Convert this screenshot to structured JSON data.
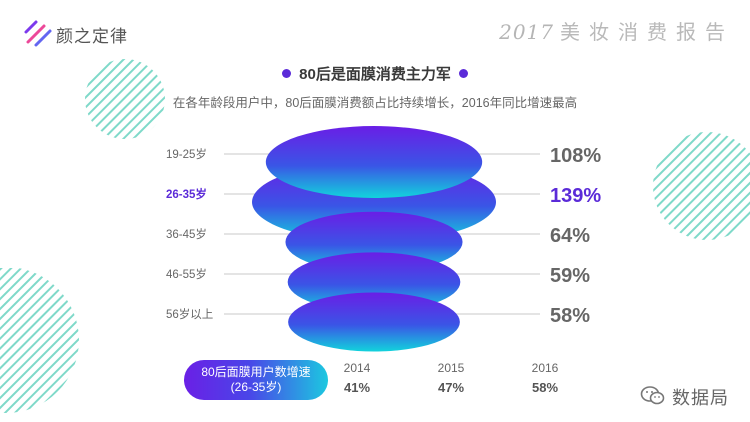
{
  "header": {
    "brand": "颜之定律",
    "report_year": "2017",
    "report_title": "美妆消费报告"
  },
  "title": "80后是面膜消费主力军",
  "subtitle": "在各年龄段用户中，80后面膜消费额占比持续增长，2016年同比增速最高",
  "colors": {
    "accent_purple": "#5b2bd8",
    "gradient_top": "#6a1ee6",
    "gradient_bottom": "#12d3dc",
    "value_grey": "#666666",
    "highlight": "#5b2bd8",
    "stripe": "#7fd9c9"
  },
  "chart_data": [
    {
      "type": "bar",
      "categories": [
        "19-25岁",
        "26-35岁",
        "36-45岁",
        "46-55岁",
        "56岁以上"
      ],
      "values": [
        108,
        139,
        64,
        59,
        58
      ],
      "value_labels": [
        "108%",
        "139%",
        "64%",
        "59%",
        "58%"
      ],
      "highlight_index": 1
    },
    {
      "type": "table",
      "row_label": [
        "80后面膜用户数增速",
        "(26-35岁)"
      ],
      "columns": [
        "2014",
        "2015",
        "2016"
      ],
      "values": [
        41,
        47,
        58
      ],
      "value_labels": [
        "41%",
        "47%",
        "58%"
      ]
    }
  ],
  "watermark": {
    "icon": "wechat-icon",
    "text": "数据局"
  }
}
